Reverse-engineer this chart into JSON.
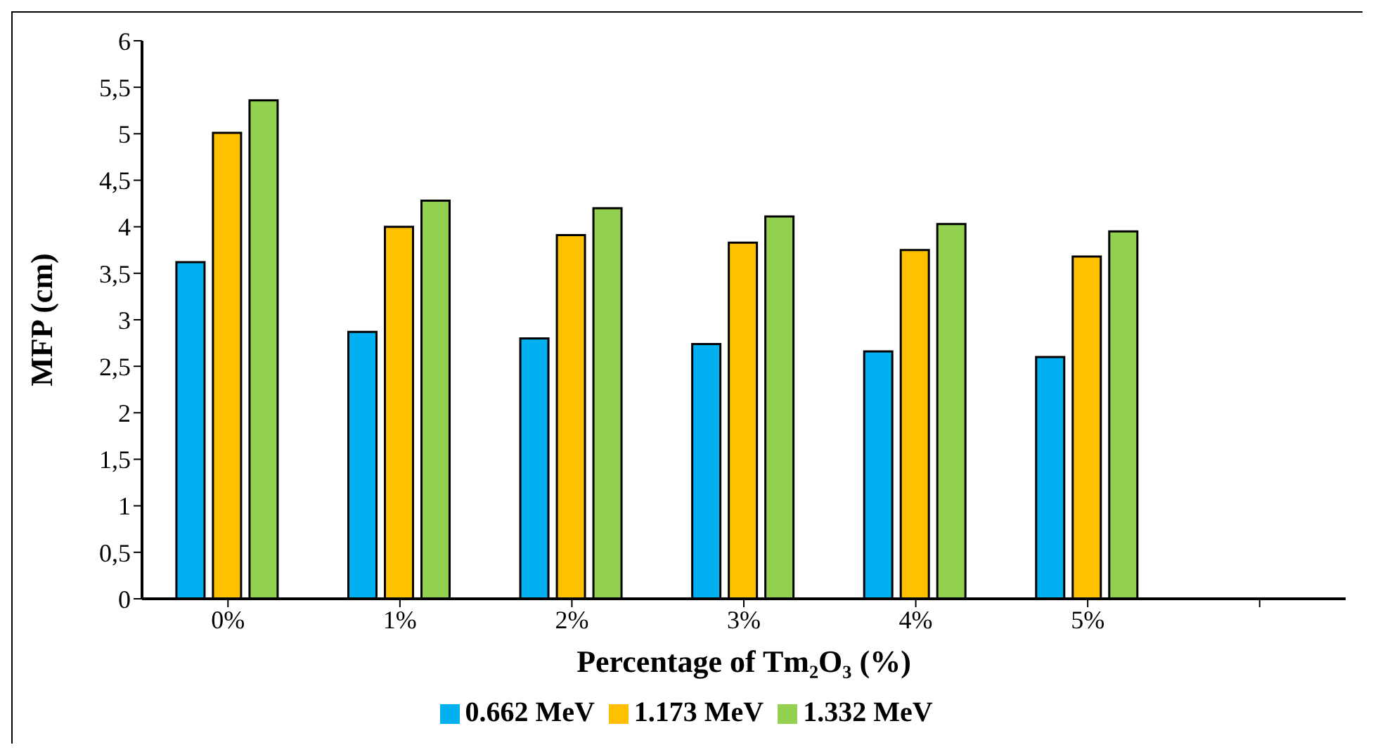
{
  "chart_data": {
    "type": "bar",
    "xlabel": "Percentage of  Tm₂O₃ (%)",
    "ylabel": "MFP (cm)",
    "categories": [
      "0%",
      "1%",
      "2%",
      "3%",
      "4%",
      "5%",
      null
    ],
    "series": [
      {
        "name": "0.662 MeV",
        "color": "#00b0f0",
        "values": [
          3.62,
          2.87,
          2.8,
          2.74,
          2.66,
          2.6,
          null
        ]
      },
      {
        "name": "1.173 MeV",
        "color": "#ffc000",
        "values": [
          5.01,
          4.0,
          3.91,
          3.83,
          3.75,
          3.68,
          null
        ]
      },
      {
        "name": "1.332 MeV",
        "color": "#92d050",
        "values": [
          5.36,
          4.28,
          4.2,
          4.11,
          4.03,
          3.95,
          null
        ]
      }
    ],
    "ylim": [
      0,
      6
    ],
    "yticks": [
      0,
      {
        "value": 0.5,
        "label": "0,5"
      },
      1,
      {
        "value": 1.5,
        "label": "1,5"
      },
      2,
      {
        "value": 2.5,
        "label": "2,5"
      },
      3,
      {
        "value": 3.5,
        "label": "3,5"
      },
      4,
      {
        "value": 4.5,
        "label": "4,5"
      },
      5,
      {
        "value": 5.5,
        "label": "5,5"
      },
      6
    ],
    "grid": false,
    "legend": "bottom"
  }
}
